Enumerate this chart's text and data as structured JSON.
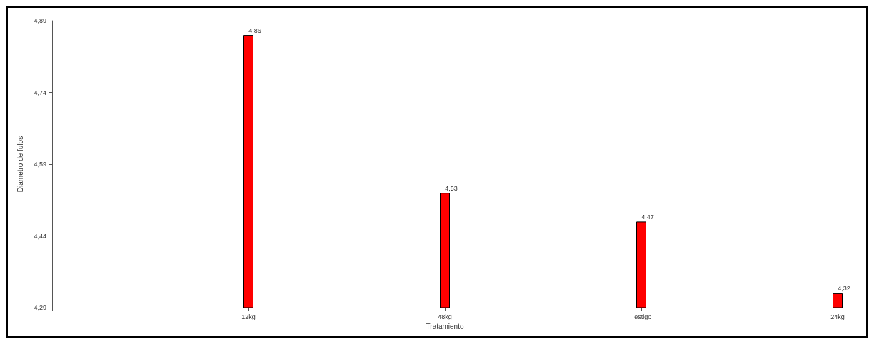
{
  "chart_data": {
    "type": "bar",
    "xlabel": "Tratamiento",
    "ylabel": "Diametro de fulos",
    "categories": [
      null,
      "12kg",
      "48kg",
      "Testigo",
      "24kg"
    ],
    "values": [
      null,
      4.86,
      4.53,
      4.47,
      4.32
    ],
    "value_labels": [
      null,
      "4,86",
      "4,53",
      "4.47",
      "4,32"
    ],
    "color": "#ff0000",
    "ylim": [
      4.29,
      4.89
    ],
    "yticks": [
      {
        "value": 4.29,
        "label": "4,29"
      },
      {
        "value": 4.44,
        "label": "4,44"
      },
      {
        "value": 4.59,
        "label": "4,59"
      },
      {
        "value": 4.74,
        "label": "4,74"
      },
      {
        "value": 4.89,
        "label": "4,89"
      }
    ],
    "grid": false
  }
}
